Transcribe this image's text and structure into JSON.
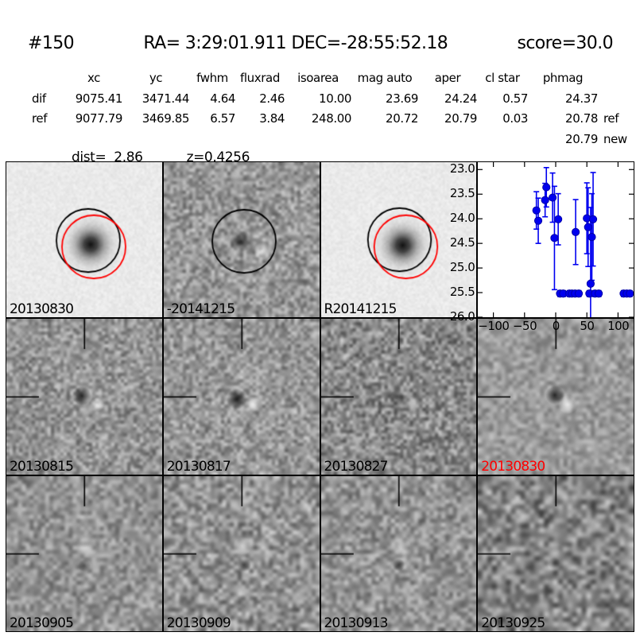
{
  "header": {
    "id": "#150",
    "coords": "RA= 3:29:01.911 DEC=-28:55:52.18",
    "score": "score=30.0"
  },
  "table": {
    "columns": [
      "xc",
      "yc",
      "fwhm",
      "fluxrad",
      "isoarea",
      "mag auto",
      "aper",
      "cl star",
      "phmag"
    ],
    "rows": [
      {
        "label": "dif",
        "xc": "9075.41",
        "yc": "3471.44",
        "fwhm": "4.64",
        "fluxrad": "2.46",
        "isoarea": "10.00",
        "mag_auto": "23.69",
        "aper": "24.24",
        "cl_star": "0.57",
        "phmag": "24.37",
        "suffix": ""
      },
      {
        "label": "ref",
        "xc": "9077.79",
        "yc": "3469.85",
        "fwhm": "6.57",
        "fluxrad": "3.84",
        "isoarea": "248.00",
        "mag_auto": "20.72",
        "aper": "20.79",
        "cl_star": "0.03",
        "phmag": "20.78",
        "suffix": "ref"
      }
    ],
    "extra": {
      "phmag": "20.79",
      "suffix": "new"
    },
    "dist": "dist=  2.86",
    "z": "z=0.4256"
  },
  "panels": [
    {
      "label": "20130830",
      "label_color": "#000000",
      "type": "new-image-with-apertures"
    },
    {
      "label": "-20141215",
      "label_color": "#000000",
      "type": "difference-image"
    },
    {
      "label": "R20141215",
      "label_color": "#000000",
      "type": "reference-image-with-apertures"
    },
    {
      "label": "",
      "label_color": "#000000",
      "type": "light-curve-plot"
    },
    {
      "label": "20130815",
      "label_color": "#000000",
      "type": "difference-image"
    },
    {
      "label": "20130817",
      "label_color": "#000000",
      "type": "difference-image"
    },
    {
      "label": "20130827",
      "label_color": "#000000",
      "type": "difference-image"
    },
    {
      "label": "20130830",
      "label_color": "#ff0000",
      "type": "difference-image"
    },
    {
      "label": "20130905",
      "label_color": "#000000",
      "type": "difference-image"
    },
    {
      "label": "20130909",
      "label_color": "#000000",
      "type": "difference-image"
    },
    {
      "label": "20130913",
      "label_color": "#000000",
      "type": "difference-image"
    },
    {
      "label": "20130925",
      "label_color": "#000000",
      "type": "difference-image"
    }
  ],
  "chart_data": {
    "type": "scatter",
    "title": "",
    "xlabel": "",
    "ylabel": "",
    "xlim": [
      -125,
      125
    ],
    "ylim": [
      22.85,
      26.0
    ],
    "y_inverted": true,
    "x_ticks": [
      -100,
      -50,
      0,
      50,
      100
    ],
    "x_tick_labels": [
      "−100",
      "−50",
      "0",
      "50",
      "100"
    ],
    "y_ticks": [
      23.0,
      23.5,
      24.0,
      24.5,
      25.0,
      25.5,
      26.0
    ],
    "y_tick_labels": [
      "23.0",
      "23.5",
      "24.0",
      "24.5",
      "25.0",
      "25.5",
      "26.0"
    ],
    "marker_color": "#0000ee",
    "series": [
      {
        "name": "detections",
        "points": [
          {
            "x": -31,
            "y": 23.83,
            "e": 0.38
          },
          {
            "x": -28,
            "y": 24.04,
            "e": 0.46
          },
          {
            "x": -17,
            "y": 23.62,
            "e": 0.34
          },
          {
            "x": -15,
            "y": 23.36,
            "e": 0.4
          },
          {
            "x": -5,
            "y": 23.57,
            "e": 0.5
          },
          {
            "x": -2,
            "y": 24.39,
            "e": 1.05
          },
          {
            "x": 4,
            "y": 24.01,
            "e": 0.52
          },
          {
            "x": 32,
            "y": 24.27,
            "e": 0.66
          },
          {
            "x": 50,
            "y": 23.99,
            "e": 0.72
          },
          {
            "x": 52,
            "y": 24.17,
            "e": 0.8
          },
          {
            "x": 58,
            "y": 24.37,
            "e": 0.88
          },
          {
            "x": 60,
            "y": 24.01,
            "e": 0.95
          },
          {
            "x": 56,
            "y": 25.32,
            "e": 1.55
          }
        ]
      },
      {
        "name": "limits",
        "points": [
          {
            "x": 7,
            "y": 25.52,
            "e": 0.06
          },
          {
            "x": 12,
            "y": 25.52,
            "e": 0.06
          },
          {
            "x": 22,
            "y": 25.52,
            "e": 0.06
          },
          {
            "x": 26,
            "y": 25.52,
            "e": 0.06
          },
          {
            "x": 31,
            "y": 25.52,
            "e": 0.06
          },
          {
            "x": 37,
            "y": 25.52,
            "e": 0.06
          },
          {
            "x": 54,
            "y": 25.52,
            "e": 0.06
          },
          {
            "x": 63,
            "y": 25.52,
            "e": 0.06
          },
          {
            "x": 69,
            "y": 25.52,
            "e": 0.06
          },
          {
            "x": 109,
            "y": 25.52,
            "e": 0.06
          },
          {
            "x": 114,
            "y": 25.52,
            "e": 0.06
          },
          {
            "x": 119,
            "y": 25.52,
            "e": 0.06
          }
        ]
      }
    ]
  }
}
